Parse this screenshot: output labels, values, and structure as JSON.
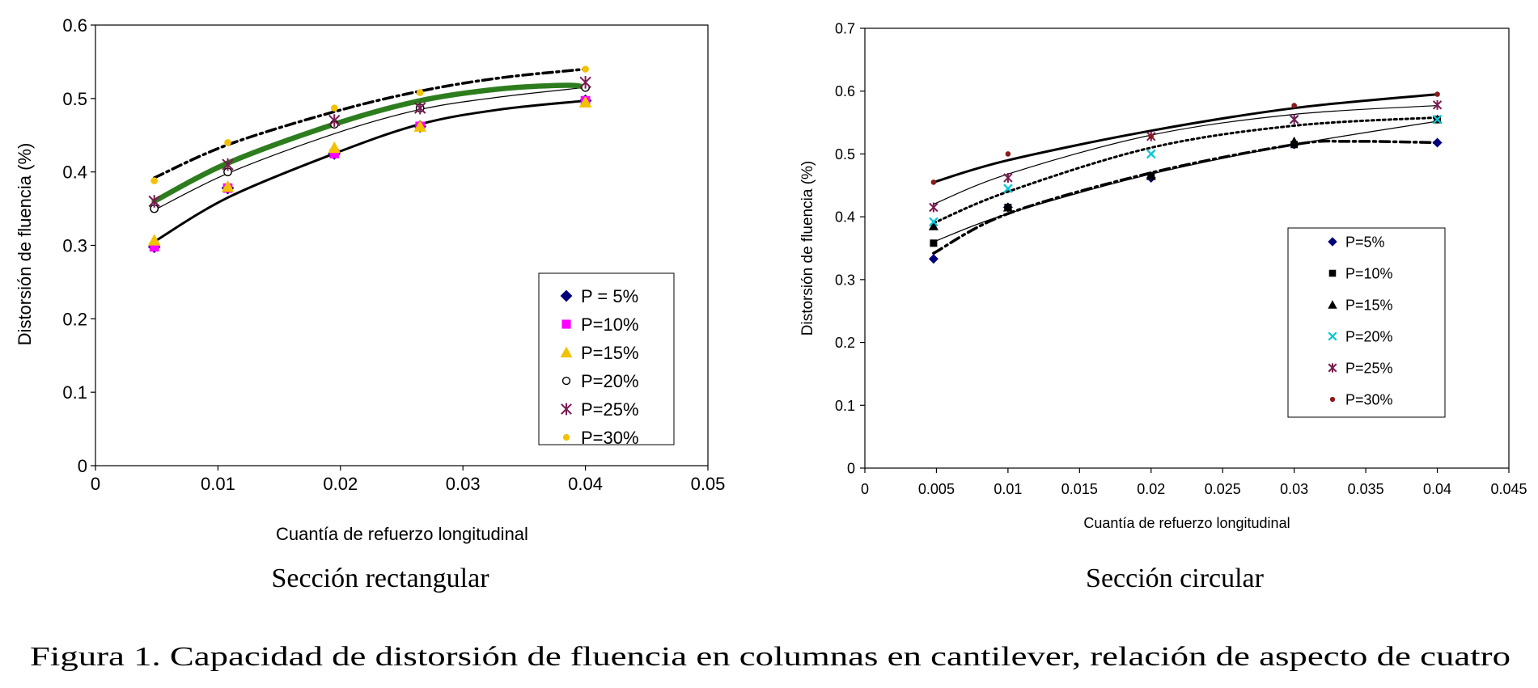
{
  "figure_caption": "Figura 1. Capacidad de distorsión de fluencia en columnas en cantilever, relación de aspecto de cuatro",
  "chart_data": [
    {
      "type": "scatter",
      "title": "",
      "subtitle": "Sección rectangular",
      "xlabel": "Cuantía de refuerzo longitudinal",
      "ylabel": "Distorsión de fluencia (%)",
      "xlim": [
        0,
        0.05
      ],
      "ylim": [
        0,
        0.6
      ],
      "xticks": [
        "0",
        "0.01",
        "0.02",
        "0.03",
        "0.04",
        "0.05"
      ],
      "yticks": [
        "0",
        "0.1",
        "0.2",
        "0.3",
        "0.4",
        "0.5",
        "0.6"
      ],
      "grid": false,
      "legend_position": "bottom-right",
      "x": [
        0.0048,
        0.0108,
        0.0195,
        0.0265,
        0.04
      ],
      "series": [
        {
          "name": "P = 5%",
          "marker": "diamond",
          "color": "#00007a",
          "values": [
            0.298,
            0.378,
            0.425,
            0.462,
            0.497
          ]
        },
        {
          "name": "P=10%",
          "marker": "square",
          "color": "#ff00ff",
          "values": [
            0.298,
            0.378,
            0.425,
            0.462,
            0.497
          ]
        },
        {
          "name": "P=15%",
          "marker": "triangle",
          "color": "#f2c200",
          "values": [
            0.307,
            0.38,
            0.433,
            0.462,
            0.495
          ]
        },
        {
          "name": "P=20%",
          "marker": "circle-open",
          "color": "#000000",
          "values": [
            0.35,
            0.4,
            0.465,
            0.487,
            0.515
          ]
        },
        {
          "name": "P=25%",
          "marker": "star",
          "color": "#7a1a4f",
          "values": [
            0.36,
            0.41,
            0.47,
            0.487,
            0.522
          ]
        },
        {
          "name": "P=30%",
          "marker": "dot",
          "color": "#f2c200",
          "values": [
            0.388,
            0.44,
            0.487,
            0.508,
            0.54
          ]
        }
      ],
      "trendlines": [
        {
          "style": "solid-thick",
          "color": "#000000",
          "x": [
            0.0048,
            0.0108,
            0.0195,
            0.0265,
            0.033,
            0.04
          ],
          "y": [
            0.305,
            0.365,
            0.425,
            0.465,
            0.485,
            0.497
          ]
        },
        {
          "style": "solid-thin",
          "color": "#000000",
          "x": [
            0.0048,
            0.0108,
            0.0195,
            0.0265,
            0.033,
            0.04
          ],
          "y": [
            0.348,
            0.398,
            0.452,
            0.485,
            0.502,
            0.515
          ]
        },
        {
          "style": "solid-bold",
          "color": "#2d7d1e",
          "x": [
            0.0048,
            0.0108,
            0.0195,
            0.0265,
            0.033,
            0.0385,
            0.04
          ],
          "y": [
            0.36,
            0.412,
            0.465,
            0.497,
            0.513,
            0.518,
            0.515
          ]
        },
        {
          "style": "dash-dot",
          "color": "#000000",
          "x": [
            0.0048,
            0.0108,
            0.0195,
            0.0265,
            0.033,
            0.04
          ],
          "y": [
            0.392,
            0.437,
            0.482,
            0.51,
            0.528,
            0.54
          ]
        }
      ]
    },
    {
      "type": "scatter",
      "title": "",
      "subtitle": "Sección circular",
      "xlabel": "Cuantía de refuerzo longitudinal",
      "ylabel": "Distorsión de fluencia (%)",
      "xlim": [
        0,
        0.045
      ],
      "ylim": [
        0,
        0.7
      ],
      "xticks": [
        "0",
        "0.005",
        "0.01",
        "0.015",
        "0.02",
        "0.025",
        "0.03",
        "0.035",
        "0.04",
        "0.045"
      ],
      "yticks": [
        "0",
        "0.1",
        "0.2",
        "0.3",
        "0.4",
        "0.5",
        "0.6",
        "0.7"
      ],
      "grid": false,
      "legend_position": "right",
      "x": [
        0.0048,
        0.01,
        0.02,
        0.03,
        0.04
      ],
      "series": [
        {
          "name": "P=5%",
          "marker": "diamond",
          "color": "#00007a",
          "values": [
            0.333,
            0.415,
            0.462,
            0.515,
            0.518
          ]
        },
        {
          "name": "P=10%",
          "marker": "square",
          "color": "#000000",
          "values": [
            0.358,
            0.415,
            0.465,
            0.515,
            0.555
          ]
        },
        {
          "name": "P=15%",
          "marker": "triangle",
          "color": "#000000",
          "values": [
            0.385,
            0.415,
            0.465,
            0.52,
            0.555
          ]
        },
        {
          "name": "P=20%",
          "marker": "x",
          "color": "#00c8d4",
          "values": [
            0.392,
            0.445,
            0.5,
            0.555,
            0.555
          ]
        },
        {
          "name": "P=25%",
          "marker": "star",
          "color": "#7a1a4f",
          "values": [
            0.415,
            0.462,
            0.528,
            0.555,
            0.578
          ]
        },
        {
          "name": "P=30%",
          "marker": "dot",
          "color": "#8b1a1a",
          "values": [
            0.455,
            0.5,
            0.528,
            0.577,
            0.595
          ]
        }
      ],
      "trendlines": [
        {
          "style": "dash-dot",
          "color": "#000000",
          "x": [
            0.0048,
            0.01,
            0.02,
            0.03,
            0.034,
            0.04
          ],
          "y": [
            0.342,
            0.405,
            0.47,
            0.515,
            0.52,
            0.518
          ]
        },
        {
          "style": "solid-thin",
          "color": "#000000",
          "x": [
            0.0048,
            0.01,
            0.02,
            0.03,
            0.04
          ],
          "y": [
            0.36,
            0.405,
            0.468,
            0.515,
            0.552
          ]
        },
        {
          "style": "dotted",
          "color": "#000000",
          "x": [
            0.0048,
            0.01,
            0.02,
            0.03,
            0.04
          ],
          "y": [
            0.39,
            0.44,
            0.51,
            0.545,
            0.558
          ]
        },
        {
          "style": "solid-thin",
          "color": "#000000",
          "x": [
            0.0048,
            0.01,
            0.02,
            0.03,
            0.04
          ],
          "y": [
            0.42,
            0.468,
            0.53,
            0.563,
            0.577
          ]
        },
        {
          "style": "solid-thick",
          "color": "#000000",
          "x": [
            0.0048,
            0.01,
            0.02,
            0.03,
            0.04
          ],
          "y": [
            0.455,
            0.49,
            0.537,
            0.573,
            0.595
          ]
        }
      ]
    }
  ]
}
